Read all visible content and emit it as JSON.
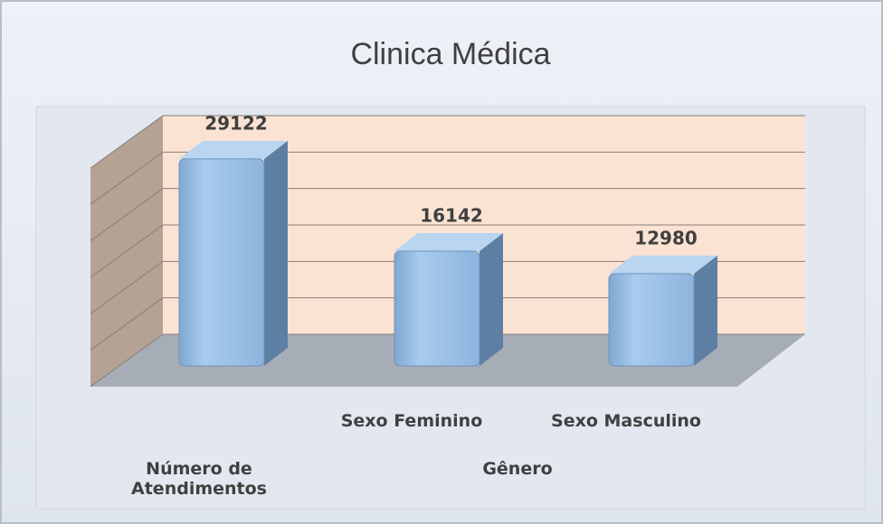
{
  "chart_data": {
    "type": "bar3d",
    "title": "Clinica Médica",
    "categories": [
      "Número de Atendimentos",
      "Sexo Feminino",
      "Sexo Masculino"
    ],
    "category_group": "Gênero",
    "values": [
      29122,
      16142,
      12980
    ],
    "color": "#9dc3e6",
    "ylim": [
      0,
      30000
    ],
    "yticks": [
      0,
      5000,
      10000,
      15000,
      20000,
      25000,
      30000
    ],
    "grid": true
  }
}
